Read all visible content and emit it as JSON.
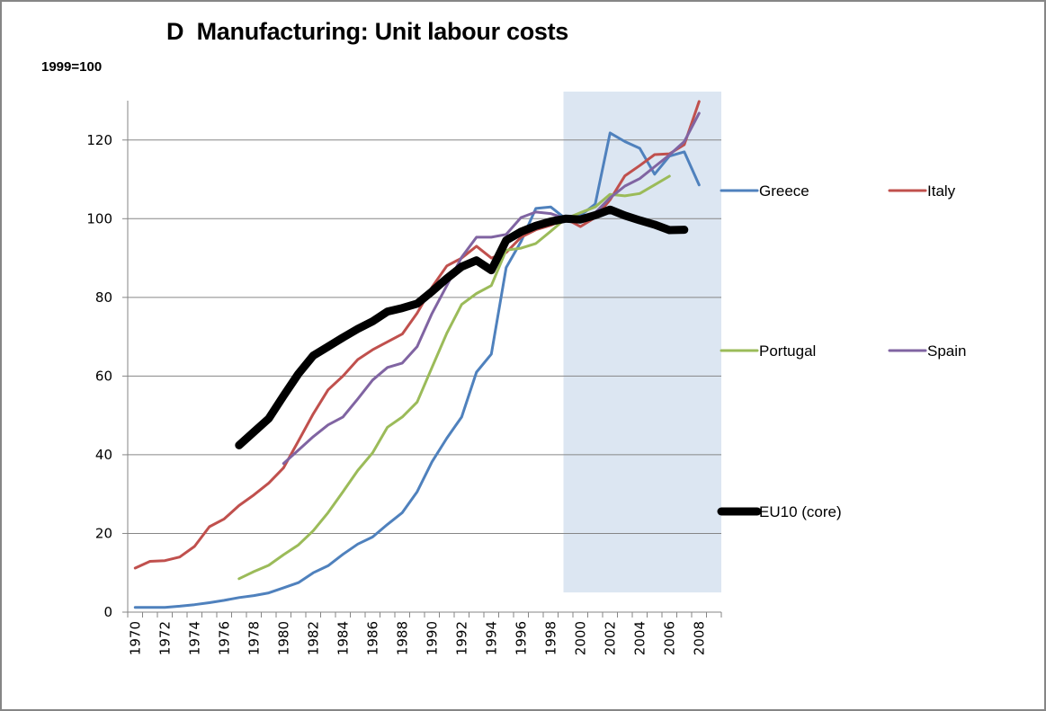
{
  "chart_data": {
    "type": "line",
    "title": "D  Manufacturing: Unit labour costs",
    "ylabel": "1999=100",
    "xlabel": "",
    "ylim": [
      0,
      130
    ],
    "yticks": [
      0,
      20,
      40,
      60,
      80,
      100,
      120
    ],
    "ytick_labels": [
      "0",
      "20",
      "40",
      "60",
      "80",
      "100",
      "120"
    ],
    "grid": true,
    "x": [
      1970,
      1971,
      1972,
      1973,
      1974,
      1975,
      1976,
      1977,
      1978,
      1979,
      1980,
      1981,
      1982,
      1983,
      1984,
      1985,
      1986,
      1987,
      1988,
      1989,
      1990,
      1991,
      1992,
      1993,
      1994,
      1995,
      1996,
      1997,
      1998,
      1999,
      2000,
      2001,
      2002,
      2003,
      2004,
      2005,
      2006,
      2007,
      2008,
      2009
    ],
    "xtick_labels": [
      "1970",
      "1972",
      "1974",
      "1976",
      "1978",
      "1980",
      "1982",
      "1984",
      "1986",
      "1988",
      "1990",
      "1992",
      "1994",
      "1996",
      "1998",
      "2000",
      "2002",
      "2004",
      "2006",
      "2008"
    ],
    "shaded_region": {
      "x_from": 1999,
      "x_to": 2009,
      "y_from": 5,
      "y_to": 133,
      "color": "#dce6f2"
    },
    "legend_position": "right",
    "series": [
      {
        "name": "Greece",
        "color": "#4f81bd",
        "width": "normal",
        "start": 1970,
        "values": [
          1.2,
          1.2,
          1.2,
          1.5,
          1.9,
          2.4,
          3.0,
          3.7,
          4.2,
          4.9,
          6.2,
          7.5,
          10.0,
          11.8,
          14.7,
          17.3,
          19.1,
          22.3,
          25.3,
          30.6,
          38.2,
          44.2,
          49.6,
          61.0,
          65.6,
          87.6,
          94.2,
          102.6,
          103.0,
          100.0,
          100.8,
          103.7,
          121.8,
          119.6,
          117.9,
          111.3,
          115.9,
          117.0,
          108.6
        ]
      },
      {
        "name": "Italy",
        "color": "#c0504d",
        "width": "normal",
        "start": 1970,
        "values": [
          11.2,
          12.9,
          13.1,
          14.0,
          16.7,
          21.7,
          23.7,
          27.1,
          29.8,
          32.8,
          36.7,
          43.5,
          50.4,
          56.5,
          60.0,
          64.2,
          66.7,
          68.7,
          70.7,
          76.0,
          82.6,
          88.0,
          90.0,
          93.0,
          90.0,
          91.4,
          95.3,
          97.2,
          98.3,
          100.0,
          98.0,
          100.3,
          104.8,
          110.9,
          113.5,
          116.3,
          116.5,
          118.8,
          129.8
        ]
      },
      {
        "name": "Portugal",
        "color": "#9bbb59",
        "width": "normal",
        "start": 1977,
        "values": [
          8.5,
          10.3,
          11.9,
          14.6,
          17.1,
          20.7,
          25.3,
          30.6,
          36.0,
          40.5,
          47.0,
          49.6,
          53.4,
          62.2,
          70.9,
          78.2,
          81.0,
          83.0,
          92.0,
          92.5,
          93.7,
          96.8,
          100.0,
          101.5,
          103.0,
          106.2,
          105.8,
          106.4,
          108.6,
          110.8
        ]
      },
      {
        "name": "Spain",
        "color": "#8064a2",
        "width": "normal",
        "start": 1980,
        "values": [
          37.8,
          41.2,
          44.6,
          47.6,
          49.6,
          54.2,
          59.0,
          62.2,
          63.3,
          67.5,
          75.9,
          83.0,
          90.2,
          95.3,
          95.3,
          96.0,
          100.3,
          101.7,
          101.3,
          100.0,
          100.0,
          101.5,
          105.3,
          108.3,
          110.2,
          113.2,
          116.2,
          119.6,
          126.8
        ]
      },
      {
        "name": "EU10 (core)",
        "color": "#000000",
        "width": "thick",
        "start": 1977,
        "values": [
          42.4,
          45.8,
          49.2,
          55.0,
          60.6,
          65.2,
          67.5,
          69.8,
          72.0,
          73.9,
          76.4,
          77.3,
          78.4,
          81.5,
          84.8,
          87.8,
          89.4,
          86.9,
          94.5,
          96.7,
          98.2,
          99.3,
          100.0,
          99.8,
          100.9,
          102.3,
          100.8,
          99.6,
          98.5,
          97.1,
          97.2
        ]
      }
    ]
  }
}
